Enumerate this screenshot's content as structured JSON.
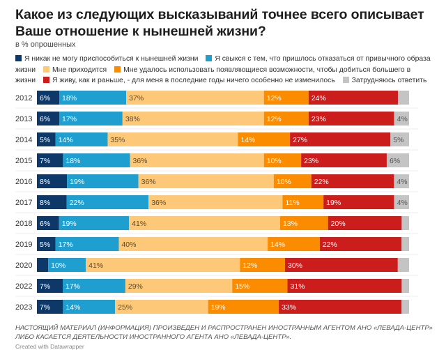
{
  "title": "Какое из следующих высказываний точнее всего описывает Ваше отношение к нынешней жизни?",
  "subtitle": "в % опрошенных",
  "footer_note": "Настоящий материал (информация) произведен и распространен иностранным агентом АНО «Левада-Центр» либо касается деятельности иностранного агента АНО «Левада-Центр».",
  "credit": "Created with Datawrapper",
  "chart_data": {
    "type": "bar",
    "orientation": "horizontal",
    "stacked": true,
    "title": "Какое из следующих высказываний точнее всего описывает Ваше отношение к нынешней жизни?",
    "subtitle": "в % опрошенных",
    "xlabel": "",
    "ylabel": "",
    "xlim": [
      0,
      100
    ],
    "legend_position": "top",
    "grid": false,
    "categories": [
      "2012",
      "2013",
      "2014",
      "2015",
      "2016",
      "2017",
      "2018",
      "2019",
      "2020",
      "2022",
      "2023"
    ],
    "series": [
      {
        "name": "Я никак не могу приспособиться к нынешней жизни",
        "color": "#0d3868",
        "label_color": "#ffffff",
        "values": [
          6,
          6,
          5,
          7,
          8,
          8,
          6,
          5,
          3,
          7,
          7
        ],
        "labels": [
          "6%",
          "6%",
          "5%",
          "7%",
          "8%",
          "8%",
          "6%",
          "5%",
          "",
          "7%",
          "7%"
        ]
      },
      {
        "name": "Я свыкся с тем, что пришлось отказаться от привычного образа жизни",
        "color": "#1e9fd0",
        "label_color": "#ffffff",
        "values": [
          18,
          17,
          14,
          18,
          19,
          22,
          19,
          17,
          10,
          17,
          14
        ],
        "labels": [
          "18%",
          "17%",
          "14%",
          "18%",
          "19%",
          "22%",
          "19%",
          "17%",
          "10%",
          "17%",
          "14%"
        ]
      },
      {
        "name": "Мне приходится",
        "color": "#fdc878",
        "label_color": "#5a4a30",
        "values": [
          37,
          38,
          35,
          36,
          36,
          36,
          41,
          40,
          41,
          29,
          25
        ],
        "labels": [
          "37%",
          "38%",
          "35%",
          "36%",
          "36%",
          "36%",
          "41%",
          "40%",
          "41%",
          "29%",
          "25%"
        ]
      },
      {
        "name": "Мне удалось использовать появляющиеся возможности, чтобы добиться большего в жизни",
        "color": "#fb8c00",
        "label_color": "#ffffff",
        "values": [
          12,
          12,
          14,
          10,
          10,
          11,
          13,
          14,
          12,
          15,
          19
        ],
        "labels": [
          "12%",
          "12%",
          "14%",
          "10%",
          "10%",
          "11%",
          "13%",
          "14%",
          "12%",
          "15%",
          "19%"
        ]
      },
      {
        "name": "Я живу, как и раньше, - для меня в последние годы ничего особенно не изменилось",
        "color": "#cc1d1d",
        "label_color": "#ffffff",
        "values": [
          24,
          23,
          27,
          23,
          22,
          19,
          20,
          22,
          30,
          31,
          33
        ],
        "labels": [
          "24%",
          "23%",
          "27%",
          "23%",
          "22%",
          "19%",
          "20%",
          "22%",
          "30%",
          "31%",
          "33%"
        ]
      },
      {
        "name": "Затрудняюсь ответить",
        "color": "#c4c4c4",
        "label_color": "#555555",
        "values": [
          3,
          4,
          5,
          6,
          4,
          4,
          2,
          2,
          3,
          2,
          2
        ],
        "labels": [
          "",
          "4%",
          "5%",
          "6%",
          "4%",
          "4%",
          "",
          "",
          "",
          "",
          ""
        ]
      }
    ]
  }
}
